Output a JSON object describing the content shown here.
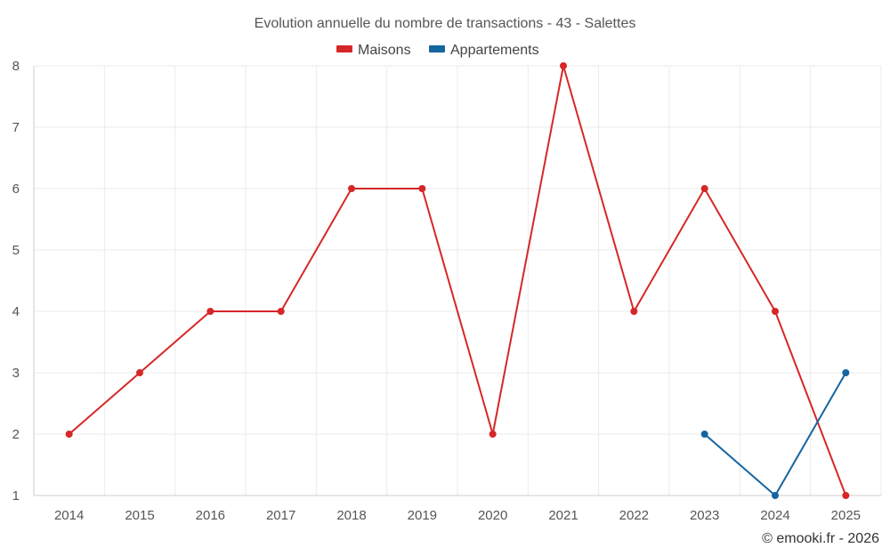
{
  "chart_data": {
    "type": "line",
    "title": "Evolution annuelle du nombre de transactions - 43 - Salettes",
    "x": [
      "2014",
      "2015",
      "2016",
      "2017",
      "2018",
      "2019",
      "2020",
      "2021",
      "2022",
      "2023",
      "2024",
      "2025"
    ],
    "series": [
      {
        "name": "Maisons",
        "color": "#d62728",
        "values": [
          2,
          3,
          4,
          4,
          6,
          6,
          2,
          8,
          4,
          6,
          4,
          1
        ]
      },
      {
        "name": "Appartements",
        "color": "#1565a0",
        "values": [
          null,
          null,
          null,
          null,
          null,
          null,
          null,
          null,
          null,
          2,
          1,
          3
        ]
      }
    ],
    "ylim": [
      1,
      8
    ],
    "yticks": [
      1,
      2,
      3,
      4,
      5,
      6,
      7,
      8
    ],
    "grid": true,
    "legend_position": "top-center",
    "xlabel": "",
    "ylabel": ""
  },
  "credit": "© emooki.fr - 2026"
}
